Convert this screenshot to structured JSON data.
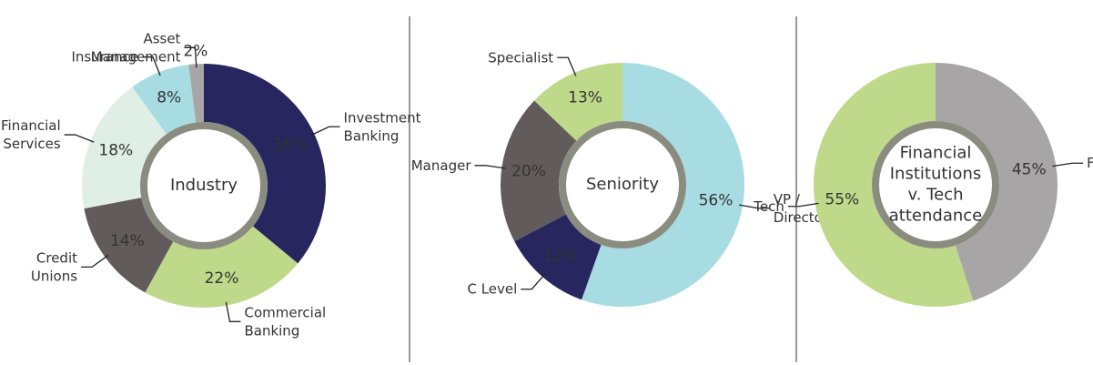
{
  "chart_data": [
    {
      "type": "pie",
      "center_label": "Industry",
      "categories": [
        "Investment Banking",
        "Commercial Banking",
        "Credit Unions",
        "Financial Services",
        "Insurance",
        "Asset Management"
      ],
      "values": [
        36,
        22,
        14,
        18,
        8,
        2
      ],
      "value_labels": [
        "36%",
        "22%",
        "14%",
        "18%",
        "8%",
        "2%"
      ],
      "colors": [
        "#27265f",
        "#bfd98a",
        "#625b5c",
        "#e0efe5",
        "#a8dce3",
        "#a7a5a6"
      ]
    },
    {
      "type": "pie",
      "center_label": "Seniority",
      "categories": [
        "VP / Director",
        "C Level",
        "Manager",
        "Specialist"
      ],
      "values": [
        56,
        12,
        20,
        13
      ],
      "value_labels": [
        "56%",
        "12%",
        "20%",
        "13%"
      ],
      "colors": [
        "#a8dce3",
        "#27265f",
        "#625b5c",
        "#bfd98a"
      ]
    },
    {
      "type": "pie",
      "center_label": "Financial Institutions v. Tech attendance",
      "categories": [
        "FI",
        "Tech"
      ],
      "values": [
        45,
        55
      ],
      "value_labels": [
        "45%",
        "55%"
      ],
      "colors": [
        "#a7a5a6",
        "#bfd98a"
      ]
    }
  ]
}
